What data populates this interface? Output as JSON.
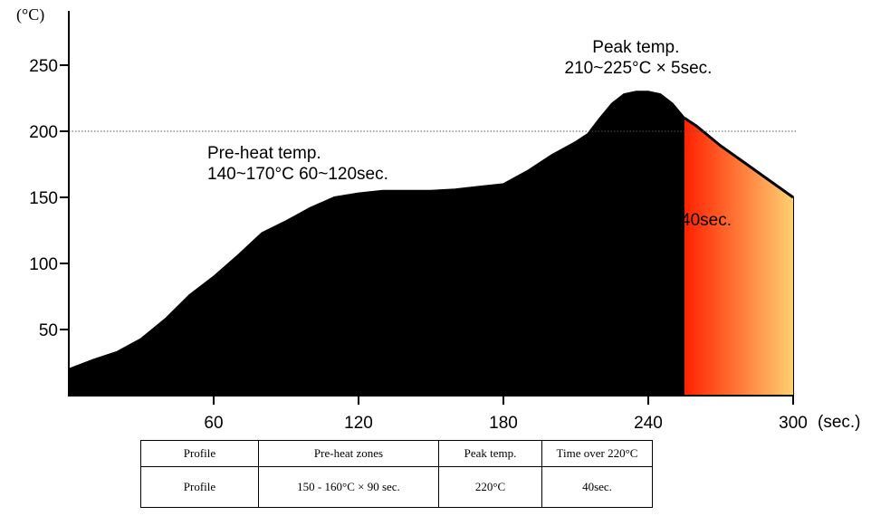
{
  "chart_data": {
    "type": "area",
    "y_unit": "(°C)",
    "x_unit": "(sec.)",
    "xlim": [
      0,
      300
    ],
    "ylim": [
      0,
      250
    ],
    "x_ticks": [
      60,
      120,
      180,
      240,
      300
    ],
    "y_ticks": [
      50,
      100,
      150,
      200,
      250
    ],
    "reference_line_y": 200,
    "series": [
      {
        "x": [
          0,
          10,
          20,
          30,
          40,
          50,
          60,
          70,
          80,
          90,
          100,
          110,
          120,
          130,
          140,
          150,
          160,
          170,
          180,
          190,
          200,
          210,
          215,
          220,
          225,
          230,
          235,
          240,
          245,
          250,
          255,
          260,
          270,
          280,
          290,
          300
        ],
        "y": [
          20,
          27,
          33,
          43,
          58,
          76,
          90,
          106,
          123,
          132,
          142,
          150,
          153,
          155,
          155,
          155,
          156,
          158,
          160,
          170,
          182,
          192,
          198,
          210,
          221,
          228,
          230,
          230,
          228,
          221,
          210,
          204,
          189,
          176,
          163,
          150
        ]
      }
    ],
    "highlight": {
      "x_start": 255,
      "x_end": 300,
      "label": "40sec.",
      "colors": [
        "#ff2200",
        "#ffcf70"
      ]
    },
    "annotations": [
      {
        "lines": [
          "Peak temp.",
          "210~225°C × 5sec."
        ]
      },
      {
        "lines": [
          "Pre-heat temp.",
          "140~170°C 60~120sec."
        ]
      }
    ]
  },
  "table": {
    "headers": [
      "Profile",
      "Pre-heat zones",
      "Peak temp.",
      "Time over 220°C"
    ],
    "rows": [
      [
        "Profile",
        "150 - 160°C × 90 sec.",
        "220°C",
        "40sec."
      ]
    ]
  }
}
